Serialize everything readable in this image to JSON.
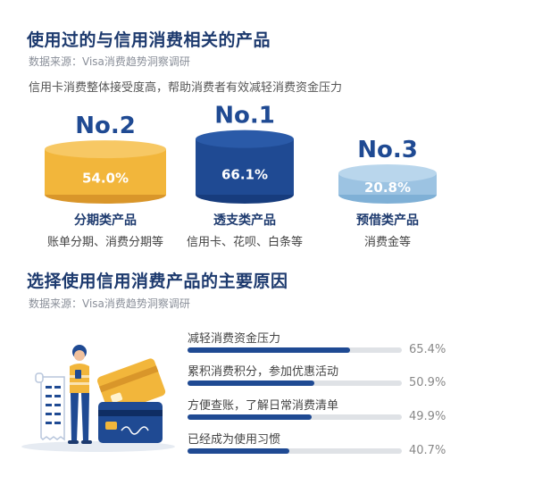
{
  "section1": {
    "title": "使用过的与信用消费相关的产品",
    "source": "数据来源：Visa消费趋势洞察调研",
    "subtitle": "信用卡消费整体接受度高，帮助消费者有效减轻消费资金压力"
  },
  "section2": {
    "title": "选择使用信用消费产品的主要原因",
    "source": "数据来源：Visa消费趋势洞察调研"
  },
  "colors": {
    "navy": "#1f4a93",
    "gold": "#f2b63b",
    "lightblue": "#9cc3e2",
    "track": "#dfe2e6"
  },
  "chart_data": [
    {
      "type": "bar",
      "categories": [
        "分期类产品",
        "透支类产品",
        "预借类产品"
      ],
      "values": [
        54.0,
        66.1,
        20.8
      ],
      "labels": [
        "54.0%",
        "66.1%",
        "20.8%"
      ],
      "ranks": [
        "No.2",
        "No.1",
        "No.3"
      ],
      "descriptions": [
        "账单分期、消费分期等",
        "信用卡、花呗、白条等",
        "消费金等"
      ]
    },
    {
      "type": "bar",
      "orientation": "horizontal",
      "categories": [
        "减轻消费资金压力",
        "累积消费积分，参加优惠活动",
        "方便查账，了解日常消费清单",
        "已经成为使用习惯"
      ],
      "values": [
        65.4,
        50.9,
        49.9,
        40.7
      ],
      "labels": [
        "65.4%",
        "50.9%",
        "49.9%",
        "40.7%"
      ]
    }
  ]
}
